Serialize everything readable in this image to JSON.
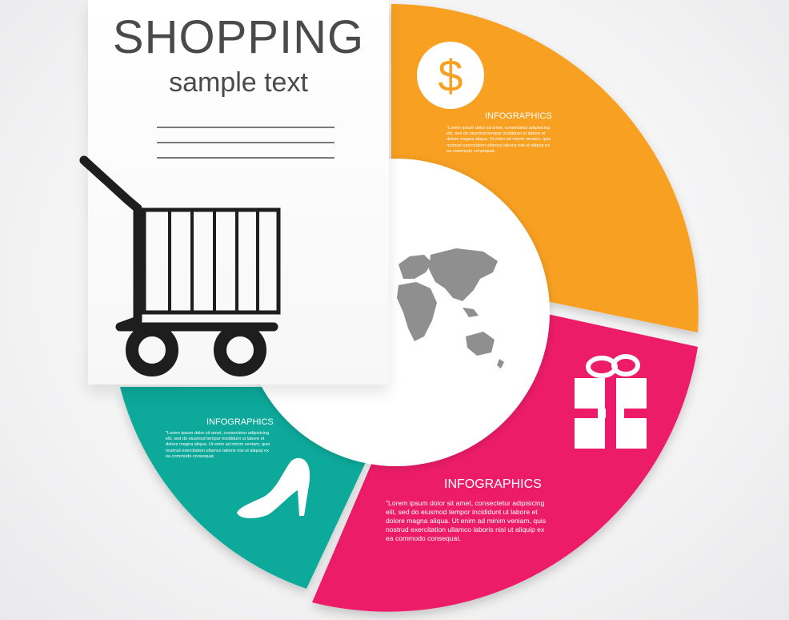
{
  "header": {
    "title": "SHOPPING",
    "subtitle": "sample text"
  },
  "colors": {
    "orange": "#F7A021",
    "pink": "#EC1A68",
    "teal": "#0EA99A",
    "text_dark": "#4A4A4A",
    "map_gray": "#8F8F8F"
  },
  "segments": {
    "orange": {
      "heading": "INFOGRAPHICS",
      "body": "\"Lorem ipsum dolor sit amet, consectetur adipisicing\nelit, sed do eiusmod tempor incididunt ut labore et\ndolore magna aliqua. Ut enim ad minim veniam, quis\nnostrud exercitation ullamco laboris nisi ut aliquip ex\nea commodo consequat.",
      "icon": "dollar-coin-icon"
    },
    "pink": {
      "heading": "INFOGRAPHICS",
      "body": "\"Lorem ipsum dolor sit amet, consectetur adipisicing\nelit, sed do eiusmod tempor incididunt ut labore et\ndolore magna aliqua. Ut enim ad minim veniam, quis\nnostrud exercitation ullamco laboris nisi ut aliquip ex\nea commodo consequat.",
      "icon": "gift-box-icon"
    },
    "teal": {
      "heading": "INFOGRAPHICS",
      "body": "\"Lorem ipsum dolor sit amet, consectetur adipisicing\nelit, sed do eiusmod tempor incididunt ut labore et\ndolore magna aliqua. Ut enim ad minim veniam, quis\nnostrud exercitation ullamco laboris nisi ut aliquip ex\nea commodo consequat.",
      "icon": "high-heel-shoe-icon"
    }
  },
  "icons": {
    "cart": "shopping-cart-icon",
    "center": "world-map-icon"
  }
}
